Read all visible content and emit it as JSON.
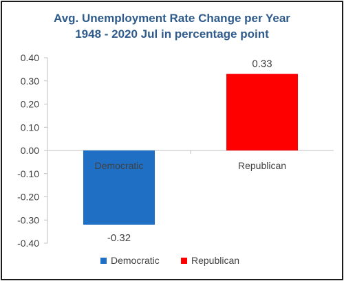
{
  "chart_data": {
    "type": "bar",
    "title_line1": "Avg. Unemployment Rate Change per Year",
    "title_line2": "1948 - 2020 Jul in percentage point",
    "categories": [
      "Democratic",
      "Republican"
    ],
    "values": [
      -0.32,
      0.33
    ],
    "value_labels": [
      "-0.32",
      "0.33"
    ],
    "colors": [
      "#1f6fc5",
      "#ff0000"
    ],
    "ylim": [
      -0.4,
      0.4
    ],
    "yticks": [
      0.4,
      0.3,
      0.2,
      0.1,
      0.0,
      -0.1,
      -0.2,
      -0.3,
      -0.4
    ],
    "ytick_labels": [
      "0.40",
      "0.30",
      "0.20",
      "0.10",
      "0.00",
      "-0.10",
      "-0.20",
      "-0.30",
      "-0.40"
    ],
    "grid": false,
    "legend_position": "bottom",
    "legend": [
      {
        "name": "Democratic",
        "color": "#1f6fc5"
      },
      {
        "name": "Republican",
        "color": "#ff0000"
      }
    ]
  }
}
